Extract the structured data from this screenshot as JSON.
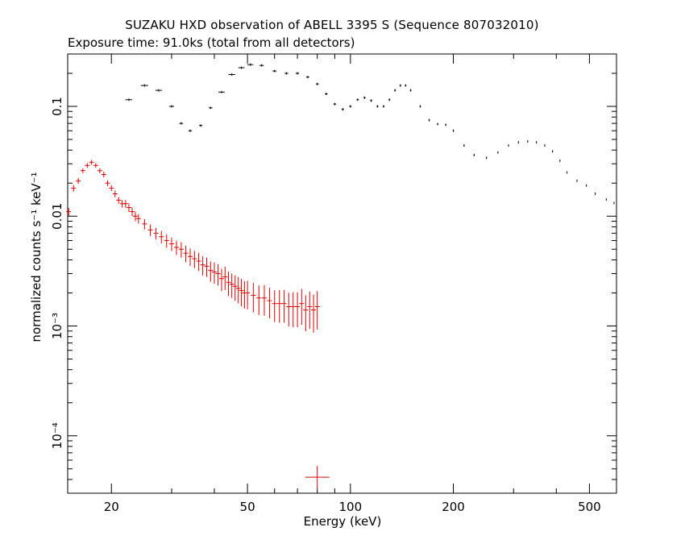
{
  "colors": {
    "background": "#ffffff",
    "axes": "#000000",
    "series_hxd_gso": "#000000",
    "series_hxd_pin": "#e00000"
  },
  "chart_data": {
    "type": "scatter",
    "title": "SUZAKU HXD observation of ABELL 3395 S (Sequence 807032010)",
    "subtitle": "Exposure time: 91.0ks (total from all detectors)",
    "xlabel": "Energy (keV)",
    "ylabel": "normalized counts s⁻¹ keV⁻¹",
    "xscale": "log",
    "yscale": "log",
    "xlim": [
      14.9,
      600
    ],
    "ylim": [
      3e-05,
      0.3
    ],
    "grid": false,
    "x_ticks": [
      "20",
      "50",
      "100",
      "200",
      "500"
    ],
    "x_tick_values": [
      20,
      50,
      100,
      200,
      500
    ],
    "y_ticks": [
      "10⁻⁴",
      "10⁻³",
      "0.01",
      "0.1"
    ],
    "y_tick_values": [
      0.0001,
      0.001,
      0.01,
      0.1
    ],
    "series": [
      {
        "color": "#000000",
        "x": [
          22.5,
          25,
          27.5,
          30,
          32,
          34,
          36.5,
          39,
          42,
          45,
          48,
          51,
          55,
          60,
          65,
          70,
          75,
          80,
          85,
          90,
          95,
          100,
          105,
          110,
          115,
          120,
          125,
          130,
          135,
          140,
          145,
          150,
          160,
          170,
          180,
          190,
          200,
          215,
          230,
          250,
          270,
          290,
          310,
          330,
          350,
          370,
          390,
          410,
          430,
          460,
          490,
          520,
          560,
          590
        ],
        "y": [
          0.115,
          0.155,
          0.14,
          0.1,
          0.07,
          0.06,
          0.067,
          0.097,
          0.135,
          0.195,
          0.225,
          0.24,
          0.236,
          0.21,
          0.2,
          0.2,
          0.185,
          0.16,
          0.13,
          0.105,
          0.094,
          0.1,
          0.115,
          0.12,
          0.113,
          0.1,
          0.1,
          0.115,
          0.14,
          0.155,
          0.155,
          0.14,
          0.1,
          0.075,
          0.069,
          0.068,
          0.06,
          0.044,
          0.036,
          0.034,
          0.038,
          0.044,
          0.047,
          0.048,
          0.047,
          0.044,
          0.039,
          0.032,
          0.025,
          0.021,
          0.019,
          0.016,
          0.0142,
          0.0132
        ],
        "xerr": [
          0.5,
          0.6,
          0.6,
          0.5,
          0.4,
          0.4,
          0.4,
          0.5,
          0.9,
          1.0,
          1.0,
          1.0,
          0.8,
          0.8,
          0.8,
          0.8,
          0.8,
          0.8,
          0.8,
          0.8,
          0.8,
          0.8,
          0.8,
          0.8,
          0.8,
          0.8,
          0.8,
          0.8,
          0.8,
          0.8,
          0.8,
          0.8,
          0.8,
          0.8,
          0.8,
          0.8,
          0.8,
          0.8,
          0.8,
          0.8,
          0.8,
          0.8,
          0.8,
          0.8,
          0.8,
          0.8,
          0.8,
          0.8,
          0.8,
          0.8,
          0.8,
          0.8,
          0.8,
          0.8
        ]
      },
      {
        "color": "#e00000",
        "x": [
          15,
          15.5,
          16,
          16.5,
          17,
          17.5,
          18,
          18.5,
          19,
          19.5,
          20,
          20.5,
          21,
          21.5,
          22,
          22.5,
          23,
          23.5,
          24,
          25,
          26,
          27,
          28,
          29,
          30,
          31,
          32,
          33,
          34,
          35,
          36,
          37,
          38,
          39,
          40,
          41,
          42,
          43,
          44,
          45,
          46,
          47,
          48,
          49,
          50,
          52,
          54,
          56,
          58,
          60,
          62,
          64,
          66,
          68,
          70,
          72,
          74,
          76,
          78,
          80,
          83
        ],
        "y": [
          0.011,
          0.018,
          0.021,
          0.026,
          0.029,
          0.031,
          0.029,
          0.026,
          0.024,
          0.02,
          0.018,
          0.016,
          0.014,
          0.013,
          0.013,
          0.012,
          0.011,
          0.01,
          0.0095,
          0.0085,
          0.0075,
          0.007,
          0.0065,
          0.006,
          0.0056,
          0.0052,
          0.005,
          0.0046,
          0.0043,
          0.0041,
          0.0039,
          0.0036,
          0.0035,
          0.0032,
          0.0031,
          0.003,
          0.0027,
          0.0028,
          0.0025,
          0.0024,
          0.0023,
          0.0022,
          0.0021,
          0.002,
          0.002,
          0.0019,
          0.0018,
          0.0018,
          0.0017,
          0.0016,
          0.0016,
          0.0016,
          0.0015,
          0.0015,
          0.0015,
          0.0016,
          0.0014,
          0.0015,
          0.0014,
          0.0015,
          4.2e-05
        ],
        "yerr_frac": [
          0.08,
          0.07,
          0.06,
          0.05,
          0.05,
          0.05,
          0.05,
          0.05,
          0.06,
          0.06,
          0.06,
          0.07,
          0.07,
          0.08,
          0.08,
          0.09,
          0.09,
          0.1,
          0.1,
          0.11,
          0.12,
          0.12,
          0.13,
          0.14,
          0.14,
          0.15,
          0.16,
          0.17,
          0.18,
          0.18,
          0.19,
          0.2,
          0.2,
          0.21,
          0.22,
          0.22,
          0.23,
          0.24,
          0.25,
          0.25,
          0.26,
          0.27,
          0.28,
          0.28,
          0.29,
          0.3,
          0.3,
          0.31,
          0.31,
          0.32,
          0.33,
          0.33,
          0.34,
          0.35,
          0.35,
          0.36,
          0.36,
          0.37,
          0.38,
          0.38,
          0.0
        ]
      }
    ],
    "annotations": [
      {
        "shape": "cross",
        "x": 80,
        "y": 4.2e-05,
        "color": "#e00000"
      }
    ]
  }
}
